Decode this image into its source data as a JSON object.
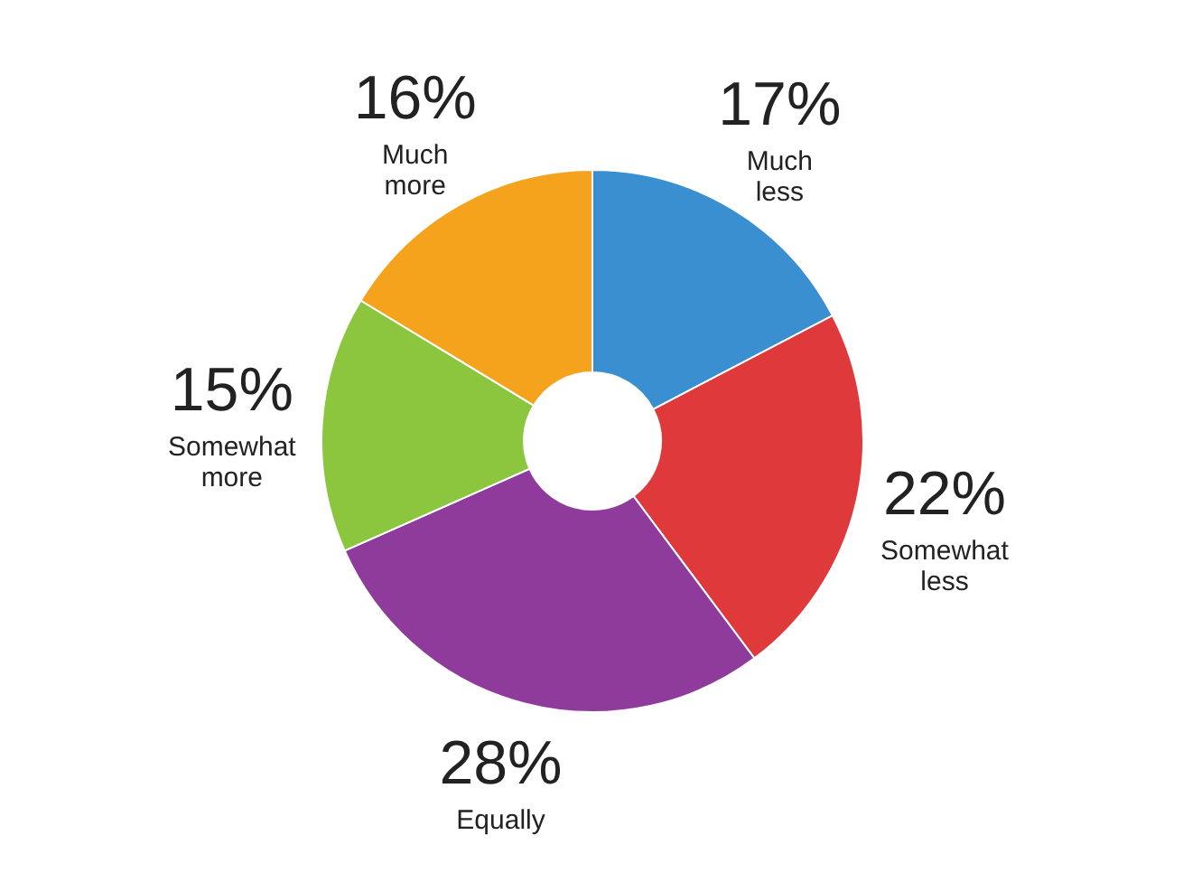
{
  "chart_data": {
    "type": "donut",
    "categories": [
      "Much less",
      "Somewhat less",
      "Equally",
      "Somewhat more",
      "Much more"
    ],
    "values": [
      17,
      22,
      28,
      15,
      16
    ],
    "value_labels": [
      "17%",
      "22%",
      "28%",
      "15%",
      "16%"
    ],
    "colors": [
      "#3a8fd0",
      "#e0393b",
      "#8e3b9c",
      "#8cc63f",
      "#f5a21c"
    ]
  }
}
